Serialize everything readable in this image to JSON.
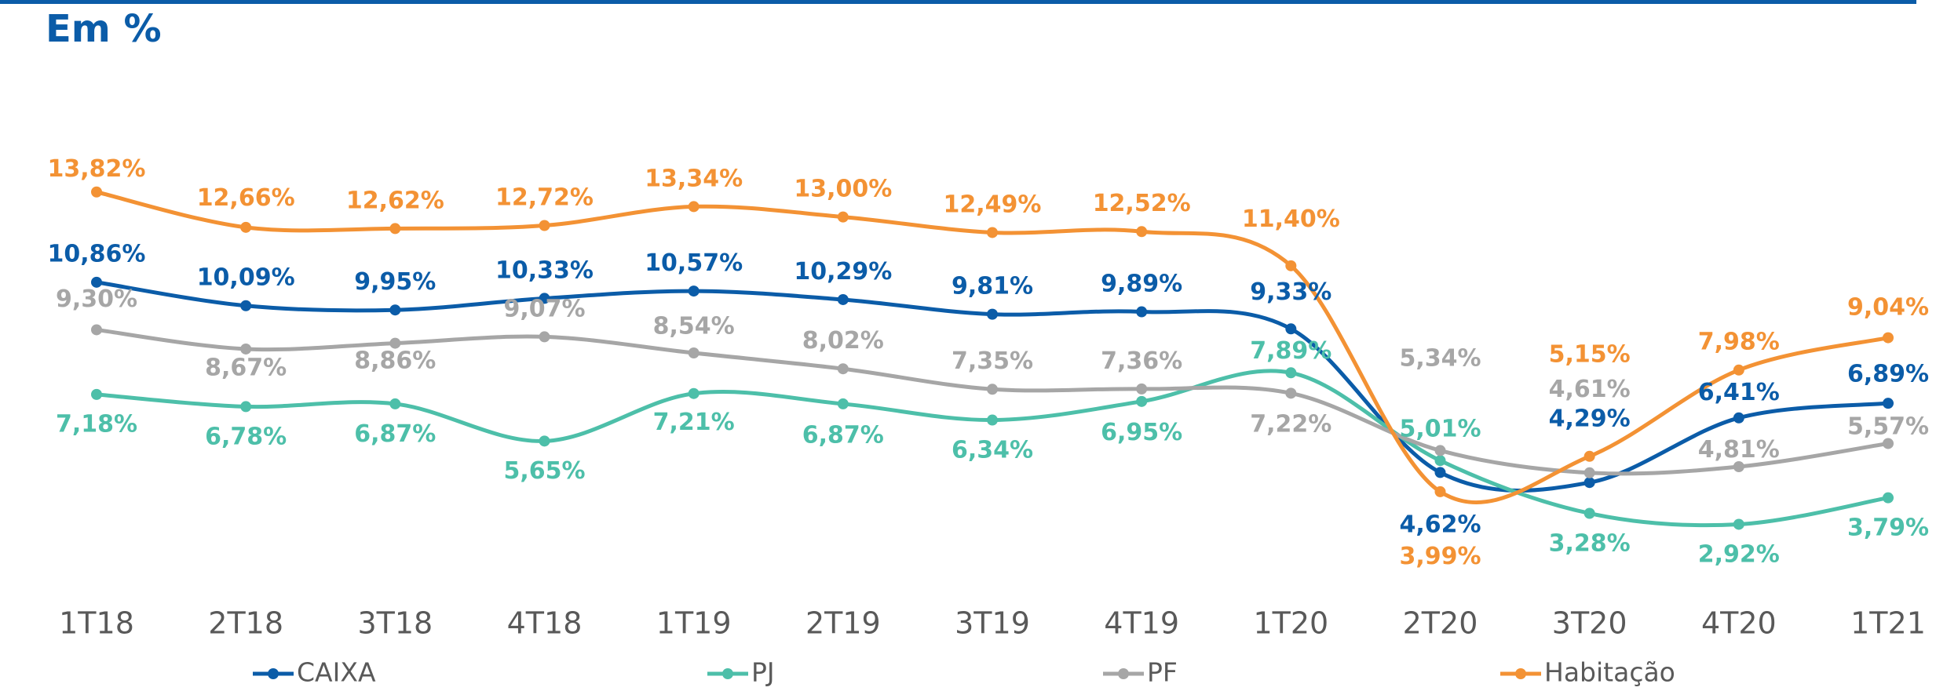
{
  "chart_data": {
    "type": "line",
    "title": "Em %",
    "categories": [
      "1T18",
      "2T18",
      "3T18",
      "4T18",
      "1T19",
      "2T19",
      "3T19",
      "4T19",
      "1T20",
      "2T20",
      "3T20",
      "4T20",
      "1T21"
    ],
    "ylim": [
      0,
      16
    ],
    "legend": "bottom",
    "series": [
      {
        "name": "CAIXA",
        "color": "#0b5ca8",
        "values": [
          10.86,
          10.09,
          9.95,
          10.33,
          10.57,
          10.29,
          9.81,
          9.89,
          9.33,
          4.62,
          4.29,
          6.41,
          6.89
        ],
        "value_labels": [
          "10,86%",
          "10,09%",
          "9,95%",
          "10,33%",
          "10,57%",
          "10,29%",
          "9,81%",
          "9,89%",
          "9,33%",
          "4,62%",
          "4,29%",
          "6,41%",
          "6,89%"
        ]
      },
      {
        "name": "PJ",
        "color": "#4dbfa9",
        "values": [
          7.18,
          6.78,
          6.87,
          5.65,
          7.21,
          6.87,
          6.34,
          6.95,
          7.89,
          5.01,
          3.28,
          2.92,
          3.79
        ],
        "value_labels": [
          "7,18%",
          "6,78%",
          "6,87%",
          "5,65%",
          "7,21%",
          "6,87%",
          "6,34%",
          "6,95%",
          "7,89%",
          "5,01%",
          "3,28%",
          "2,92%",
          "3,79%"
        ]
      },
      {
        "name": "PF",
        "color": "#a6a6a6",
        "values": [
          9.3,
          8.67,
          8.86,
          9.07,
          8.54,
          8.02,
          7.35,
          7.36,
          7.22,
          5.34,
          4.61,
          4.81,
          5.57
        ],
        "value_labels": [
          "9,30%",
          "8,67%",
          "8,86%",
          "9,07%",
          "8,54%",
          "8,02%",
          "7,35%",
          "7,36%",
          "7,22%",
          "5,34%",
          "4,61%",
          "4,81%",
          "5,57%"
        ]
      },
      {
        "name": "Habitação",
        "color": "#f39234",
        "values": [
          13.82,
          12.66,
          12.62,
          12.72,
          13.34,
          13.0,
          12.49,
          12.52,
          11.4,
          3.99,
          5.15,
          7.98,
          9.04
        ],
        "value_labels": [
          "13,82%",
          "12,66%",
          "12,62%",
          "12,72%",
          "13,34%",
          "13,00%",
          "12,49%",
          "12,52%",
          "11,40%",
          "3,99%",
          "5,15%",
          "7,98%",
          "9,04%"
        ]
      }
    ]
  }
}
